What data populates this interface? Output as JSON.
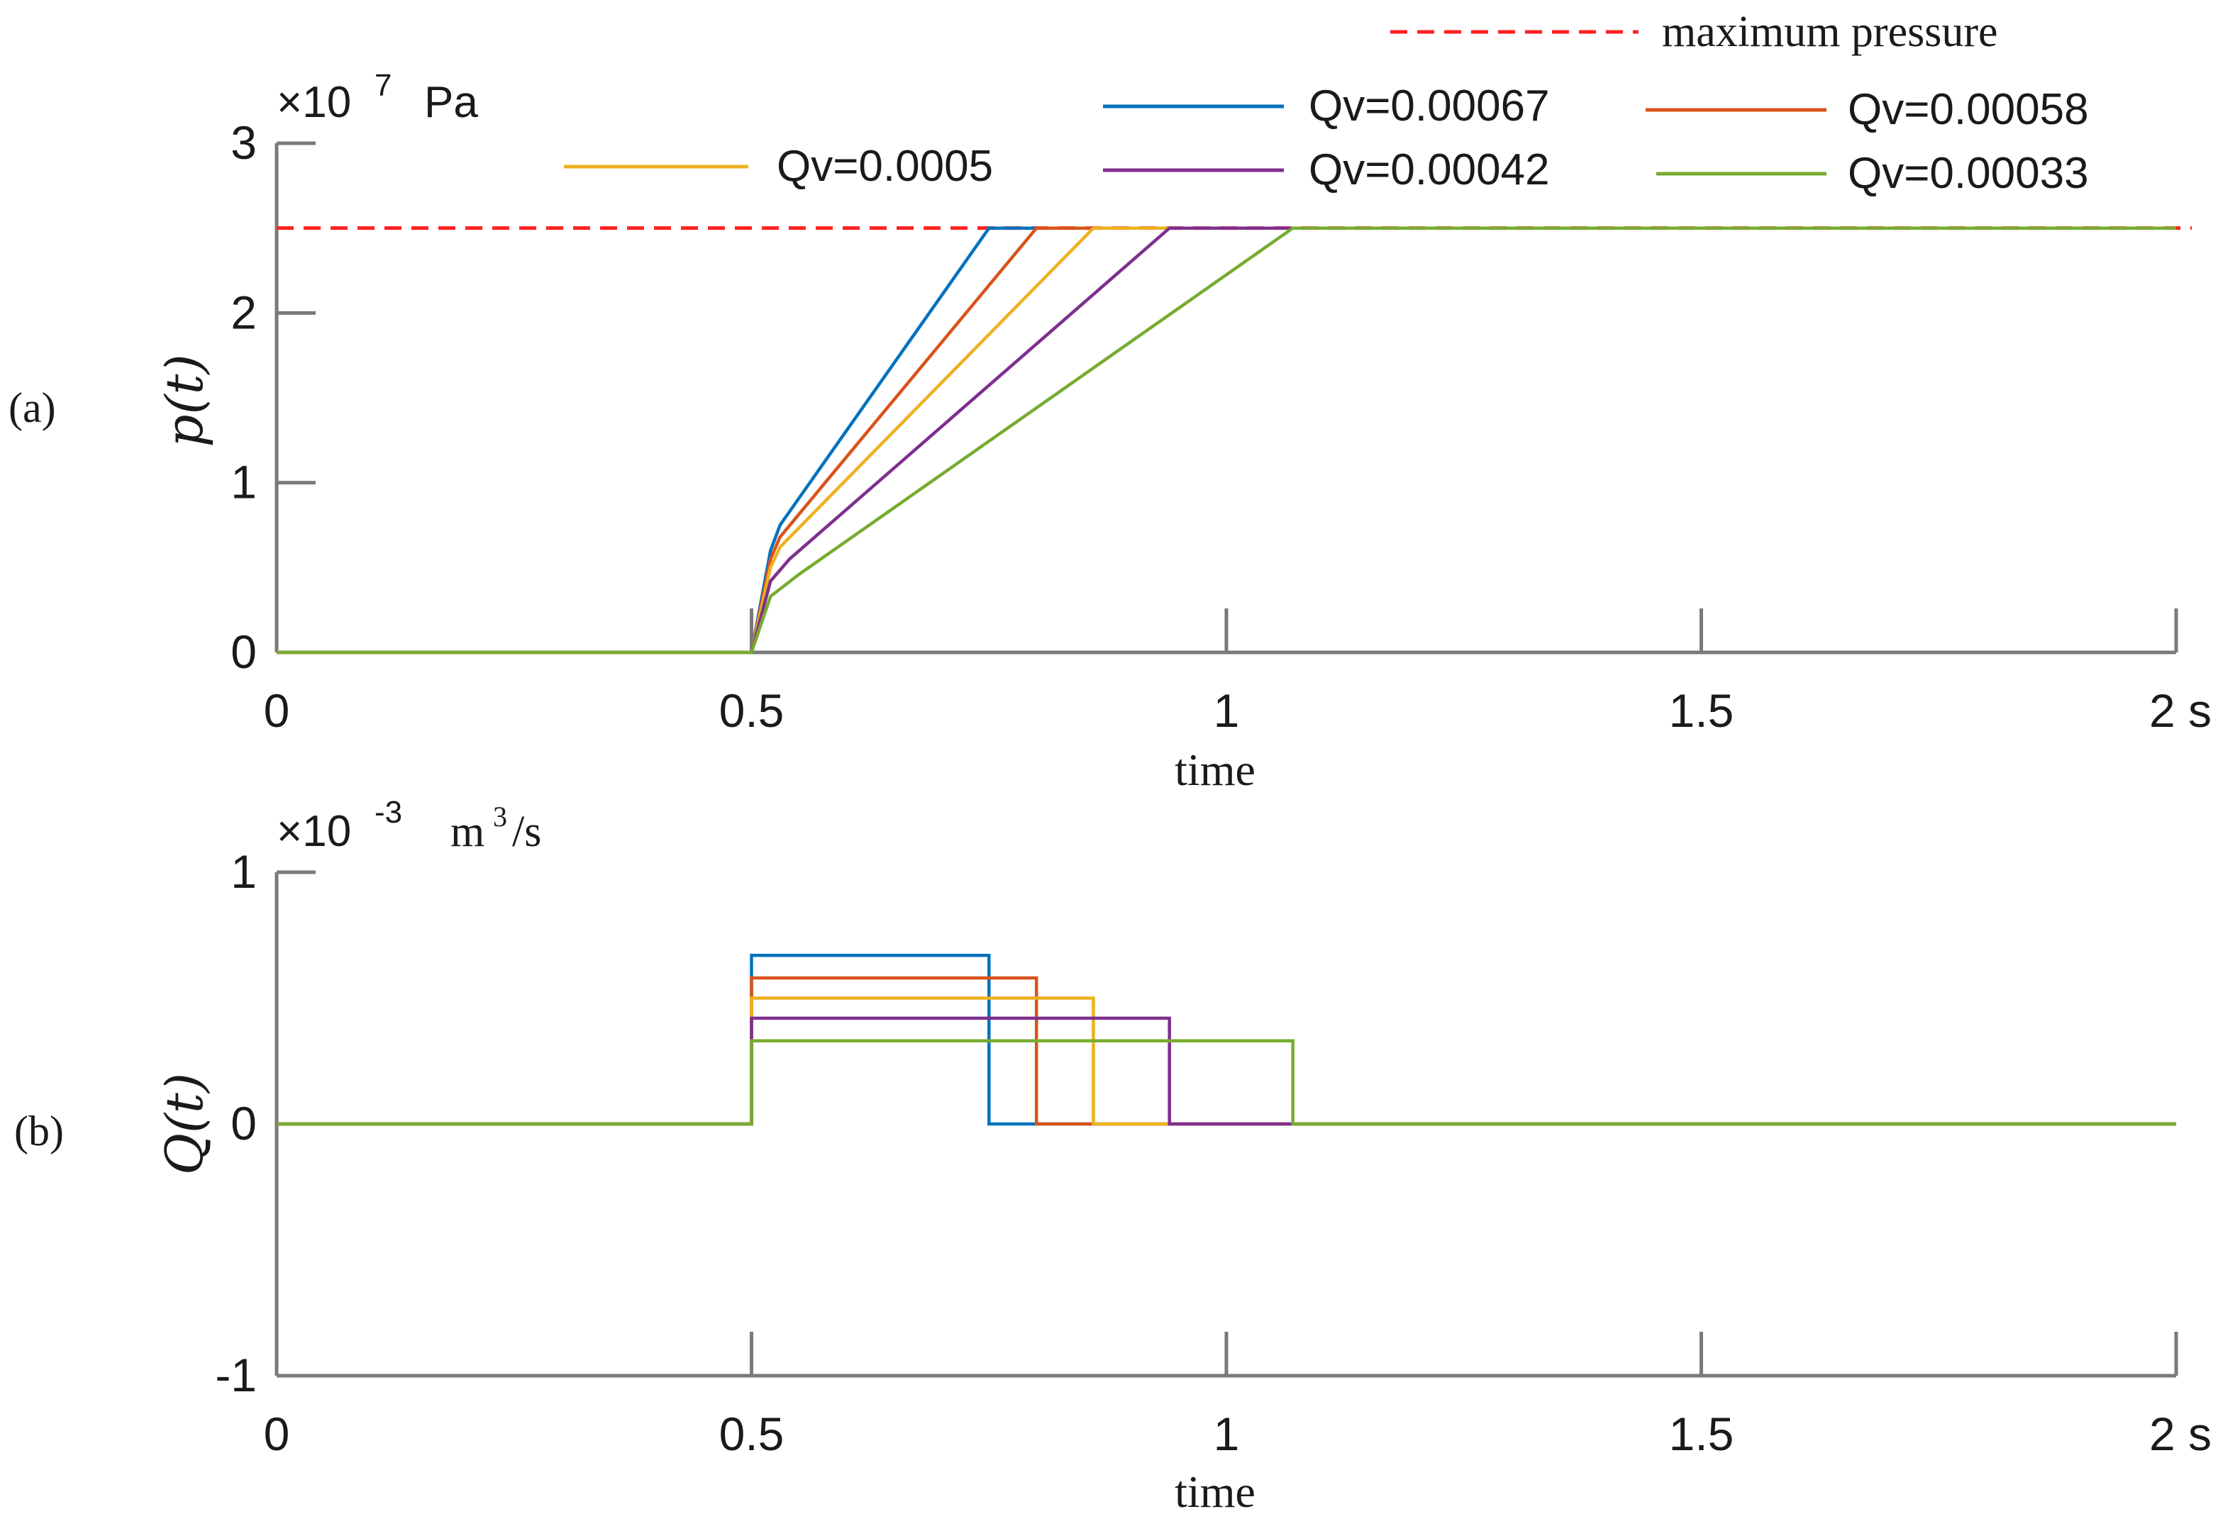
{
  "chart_data": [
    {
      "panel": "(a)",
      "type": "line",
      "title": "",
      "xlabel": "time",
      "ylabel": "p(t)",
      "y_multiplier": "×10",
      "y_exponent": "7",
      "y_unit": "Pa",
      "x_unit": "s",
      "xlim": [
        0,
        2
      ],
      "ylim": [
        0,
        3
      ],
      "x_ticks": [
        0,
        0.5,
        1,
        1.5,
        2
      ],
      "x_tick_labels": [
        "0",
        "0.5",
        "1",
        "1.5",
        "2 s"
      ],
      "y_ticks": [
        0,
        1,
        2,
        3
      ],
      "y_tick_labels": [
        "0",
        "1",
        "2",
        "3"
      ],
      "grid": false,
      "reference_line": {
        "name": "maximum pressure",
        "y": 2.5,
        "color": "#ff2020",
        "style": "dashed"
      },
      "series": [
        {
          "name": "Qv=0.00067",
          "color": "#0072BD",
          "x": [
            0,
            0.5,
            0.52,
            0.53,
            0.75,
            2
          ],
          "y": [
            0,
            0,
            0.6,
            0.75,
            2.5,
            2.5
          ]
        },
        {
          "name": "Qv=0.00058",
          "color": "#D95319",
          "x": [
            0,
            0.5,
            0.52,
            0.53,
            0.8,
            2
          ],
          "y": [
            0,
            0,
            0.55,
            0.68,
            2.5,
            2.5
          ]
        },
        {
          "name": "Qv=0.0005",
          "color": "#EDB120",
          "x": [
            0,
            0.5,
            0.52,
            0.53,
            0.86,
            2
          ],
          "y": [
            0,
            0,
            0.5,
            0.62,
            2.5,
            2.5
          ]
        },
        {
          "name": "Qv=0.00042",
          "color": "#7E2F8E",
          "x": [
            0,
            0.5,
            0.52,
            0.54,
            0.94,
            2
          ],
          "y": [
            0,
            0,
            0.42,
            0.55,
            2.5,
            2.5
          ]
        },
        {
          "name": "Qv=0.00033",
          "color": "#77AC30",
          "x": [
            0,
            0.5,
            0.52,
            0.55,
            1.07,
            2
          ],
          "y": [
            0,
            0,
            0.33,
            0.46,
            2.5,
            2.5
          ]
        }
      ]
    },
    {
      "panel": "(b)",
      "type": "line",
      "title": "",
      "xlabel": "time",
      "ylabel": "Q(t)",
      "y_multiplier": "×10",
      "y_exponent": "-3",
      "y_unit_base": "m",
      "y_unit_power": "3",
      "y_unit_rest": "/s",
      "x_unit": "s",
      "xlim": [
        0,
        2
      ],
      "ylim": [
        -1,
        1
      ],
      "x_ticks": [
        0,
        0.5,
        1,
        1.5,
        2
      ],
      "x_tick_labels": [
        "0",
        "0.5",
        "1",
        "1.5",
        "2 s"
      ],
      "y_ticks": [
        -1,
        0,
        1
      ],
      "y_tick_labels": [
        "-1",
        "0",
        "1"
      ],
      "grid": false,
      "series": [
        {
          "name": "Qv=0.00067",
          "color": "#0072BD",
          "x": [
            0,
            0.5,
            0.5,
            0.75,
            0.75,
            2
          ],
          "y": [
            0,
            0,
            0.67,
            0.67,
            0,
            0
          ]
        },
        {
          "name": "Qv=0.00058",
          "color": "#D95319",
          "x": [
            0,
            0.5,
            0.5,
            0.8,
            0.8,
            2
          ],
          "y": [
            0,
            0,
            0.58,
            0.58,
            0,
            0
          ]
        },
        {
          "name": "Qv=0.0005",
          "color": "#EDB120",
          "x": [
            0,
            0.5,
            0.5,
            0.86,
            0.86,
            2
          ],
          "y": [
            0,
            0,
            0.5,
            0.5,
            0,
            0
          ]
        },
        {
          "name": "Qv=0.00042",
          "color": "#7E2F8E",
          "x": [
            0,
            0.5,
            0.5,
            0.94,
            0.94,
            2
          ],
          "y": [
            0,
            0,
            0.42,
            0.42,
            0,
            0
          ]
        },
        {
          "name": "Qv=0.00033",
          "color": "#77AC30",
          "x": [
            0,
            0.5,
            0.5,
            1.07,
            1.07,
            2
          ],
          "y": [
            0,
            0,
            0.33,
            0.33,
            0,
            0
          ]
        }
      ]
    }
  ],
  "legend": {
    "placement": "top",
    "entries": [
      {
        "label": "maximum pressure",
        "color": "#ff2020",
        "style": "dashed"
      },
      {
        "label": "Qv=0.00067",
        "color": "#0072BD",
        "style": "solid"
      },
      {
        "label": "Qv=0.00058",
        "color": "#D95319",
        "style": "solid"
      },
      {
        "label": "Qv=0.0005",
        "color": "#EDB120",
        "style": "solid"
      },
      {
        "label": "Qv=0.00042",
        "color": "#7E2F8E",
        "style": "solid"
      },
      {
        "label": "Qv=0.00033",
        "color": "#77AC30",
        "style": "solid"
      }
    ]
  }
}
